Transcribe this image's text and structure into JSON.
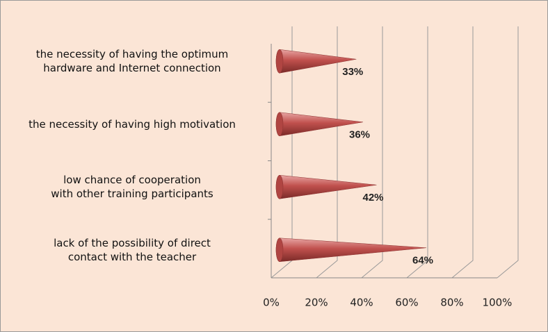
{
  "chart_data": {
    "type": "cone-bar",
    "categories": [
      "the necessity of having the optimum\nhardware and Internet connection",
      "the necessity of having high motivation",
      "low chance of cooperation\nwith other training participants",
      "lack of the possibility of direct\ncontact with the teacher"
    ],
    "values": [
      33,
      36,
      42,
      64
    ],
    "value_labels": [
      "33%",
      "36%",
      "42%",
      "64%"
    ],
    "color": "#c0504d",
    "xlim": [
      0,
      100
    ],
    "xticks": [
      {
        "value": 0,
        "label": "0%"
      },
      {
        "value": 20,
        "label": "20%"
      },
      {
        "value": 40,
        "label": "40%"
      },
      {
        "value": 60,
        "label": "60%"
      },
      {
        "value": 80,
        "label": "80%"
      },
      {
        "value": 100,
        "label": "100%"
      }
    ],
    "grid": true
  }
}
